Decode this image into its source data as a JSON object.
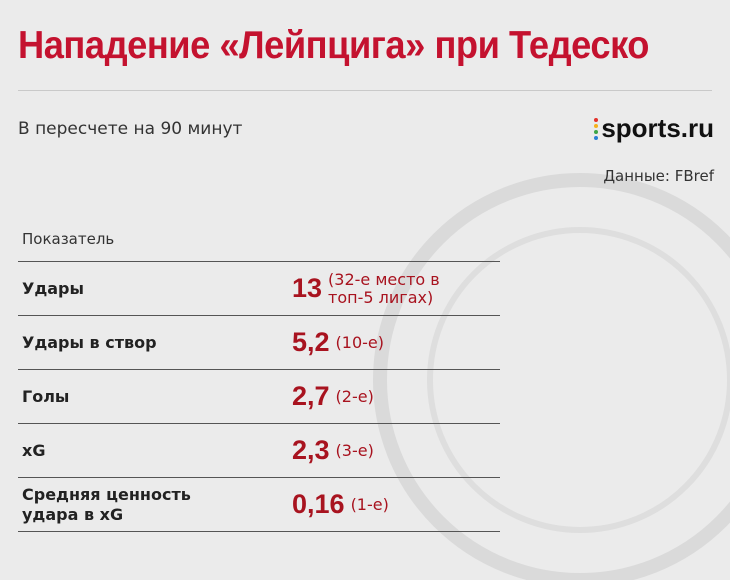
{
  "header": {
    "title": "Нападение «Лейпцига» при Тедеско",
    "subtitle": "В пересчете на 90 минут",
    "logo": "sports.ru",
    "source": "Данные: FBref"
  },
  "table": {
    "header": "Показатель",
    "rows": [
      [
        "Удары",
        "13",
        "(32-е место в топ-5 лигах)"
      ],
      [
        "Удары в створ",
        "5,2",
        "(10-е)"
      ],
      [
        "Голы",
        "2,7",
        "(2-е)"
      ],
      [
        "xG",
        "2,3",
        "(3-е)"
      ],
      [
        "Средняя ценность удара в xG",
        "0,16",
        "(1-е)"
      ]
    ]
  }
}
